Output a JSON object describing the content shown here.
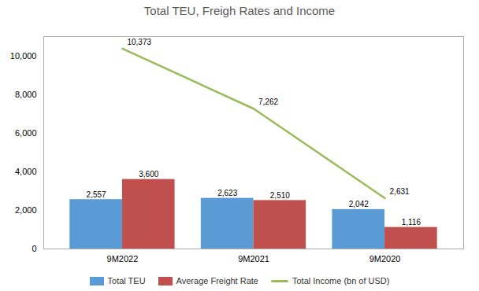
{
  "chart_data": {
    "type": "bar",
    "title": "Total TEU, Freigh Rates and Income",
    "categories": [
      "9M2022",
      "9M2021",
      "9M2020"
    ],
    "series": [
      {
        "name": "Total TEU",
        "type": "bar",
        "color": "#5B9BD5",
        "values": [
          2557,
          2623,
          2042
        ],
        "value_labels": [
          "2,557",
          "2,623",
          "2,042"
        ]
      },
      {
        "name": "Average Freight Rate",
        "type": "bar",
        "color": "#C0504D",
        "values": [
          3600,
          2510,
          1116
        ],
        "value_labels": [
          "3,600",
          "2,510",
          "1,116"
        ]
      },
      {
        "name": "Total Income (bn of USD)",
        "type": "line",
        "color": "#9BBB59",
        "values": [
          10373,
          7262,
          2631
        ],
        "value_labels": [
          "10,373",
          "7,262",
          "2,631"
        ]
      }
    ],
    "ylim": [
      0,
      11000
    ],
    "yticks": [
      0,
      {
        "value": 2000,
        "label": "2,000"
      },
      {
        "value": 4000,
        "label": "4,000"
      },
      {
        "value": 6000,
        "label": "6,000"
      },
      {
        "value": 8000,
        "label": "8,000"
      },
      {
        "value": 10000,
        "label": "10,000"
      }
    ],
    "grid": false,
    "legend": "bottom",
    "data_labels": true
  }
}
